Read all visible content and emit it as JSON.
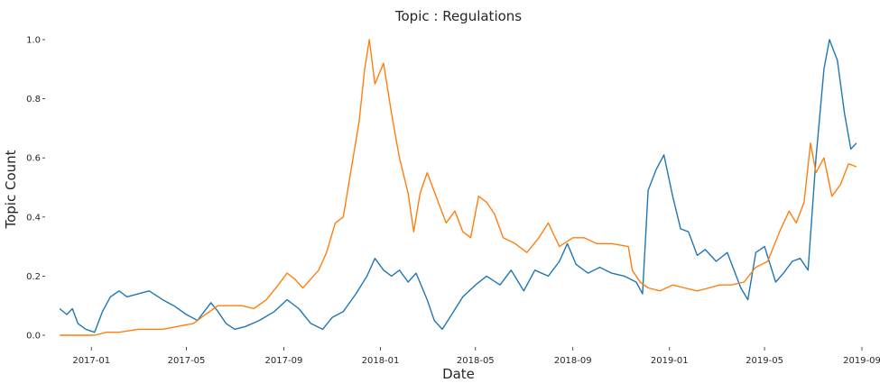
{
  "chart_data": {
    "type": "line",
    "title": "Topic : Regulations",
    "xlabel": "Date",
    "ylabel": "Topic Count",
    "grid": false,
    "xlim": [
      "2016-11-15",
      "2019-09-01"
    ],
    "ylim": [
      0.0,
      1.0
    ],
    "x_ticks": [
      "2017-01",
      "2017-05",
      "2017-09",
      "2018-01",
      "2018-05",
      "2018-09",
      "2019-01",
      "2019-05",
      "2019-09"
    ],
    "y_ticks": [
      "0.0",
      "0.2",
      "0.4",
      "0.6",
      "0.8",
      "1.0"
    ],
    "series": [
      {
        "color": "#1f77b4",
        "points": [
          [
            "2016-11-22",
            0.09
          ],
          [
            "2016-12-01",
            0.07
          ],
          [
            "2016-12-08",
            0.09
          ],
          [
            "2016-12-15",
            0.04
          ],
          [
            "2016-12-25",
            0.02
          ],
          [
            "2017-01-05",
            0.01
          ],
          [
            "2017-01-15",
            0.08
          ],
          [
            "2017-01-25",
            0.13
          ],
          [
            "2017-02-05",
            0.15
          ],
          [
            "2017-02-15",
            0.13
          ],
          [
            "2017-03-01",
            0.14
          ],
          [
            "2017-03-15",
            0.15
          ],
          [
            "2017-04-01",
            0.12
          ],
          [
            "2017-04-15",
            0.1
          ],
          [
            "2017-05-01",
            0.07
          ],
          [
            "2017-05-15",
            0.05
          ],
          [
            "2017-06-01",
            0.11
          ],
          [
            "2017-06-10",
            0.08
          ],
          [
            "2017-06-20",
            0.04
          ],
          [
            "2017-07-01",
            0.02
          ],
          [
            "2017-07-15",
            0.03
          ],
          [
            "2017-08-01",
            0.05
          ],
          [
            "2017-08-20",
            0.08
          ],
          [
            "2017-09-05",
            0.12
          ],
          [
            "2017-09-20",
            0.09
          ],
          [
            "2017-10-05",
            0.04
          ],
          [
            "2017-10-20",
            0.02
          ],
          [
            "2017-11-01",
            0.06
          ],
          [
            "2017-11-15",
            0.08
          ],
          [
            "2017-12-01",
            0.14
          ],
          [
            "2017-12-15",
            0.2
          ],
          [
            "2017-12-25",
            0.26
          ],
          [
            "2018-01-05",
            0.22
          ],
          [
            "2018-01-15",
            0.2
          ],
          [
            "2018-01-25",
            0.22
          ],
          [
            "2018-02-05",
            0.18
          ],
          [
            "2018-02-15",
            0.21
          ],
          [
            "2018-03-01",
            0.12
          ],
          [
            "2018-03-10",
            0.05
          ],
          [
            "2018-03-20",
            0.02
          ],
          [
            "2018-04-01",
            0.07
          ],
          [
            "2018-04-15",
            0.13
          ],
          [
            "2018-05-01",
            0.17
          ],
          [
            "2018-05-15",
            0.2
          ],
          [
            "2018-06-01",
            0.17
          ],
          [
            "2018-06-15",
            0.22
          ],
          [
            "2018-07-01",
            0.15
          ],
          [
            "2018-07-15",
            0.22
          ],
          [
            "2018-08-01",
            0.2
          ],
          [
            "2018-08-15",
            0.25
          ],
          [
            "2018-08-25",
            0.31
          ],
          [
            "2018-09-05",
            0.24
          ],
          [
            "2018-09-20",
            0.21
          ],
          [
            "2018-10-05",
            0.23
          ],
          [
            "2018-10-20",
            0.21
          ],
          [
            "2018-11-05",
            0.2
          ],
          [
            "2018-11-20",
            0.18
          ],
          [
            "2018-11-28",
            0.14
          ],
          [
            "2018-12-05",
            0.49
          ],
          [
            "2018-12-15",
            0.56
          ],
          [
            "2018-12-25",
            0.61
          ],
          [
            "2019-01-05",
            0.47
          ],
          [
            "2019-01-15",
            0.36
          ],
          [
            "2019-01-25",
            0.35
          ],
          [
            "2019-02-05",
            0.27
          ],
          [
            "2019-02-15",
            0.29
          ],
          [
            "2019-03-01",
            0.25
          ],
          [
            "2019-03-15",
            0.28
          ],
          [
            "2019-04-01",
            0.16
          ],
          [
            "2019-04-10",
            0.12
          ],
          [
            "2019-04-20",
            0.28
          ],
          [
            "2019-05-01",
            0.3
          ],
          [
            "2019-05-15",
            0.18
          ],
          [
            "2019-05-25",
            0.21
          ],
          [
            "2019-06-05",
            0.25
          ],
          [
            "2019-06-15",
            0.26
          ],
          [
            "2019-06-25",
            0.22
          ],
          [
            "2019-07-05",
            0.6
          ],
          [
            "2019-07-15",
            0.9
          ],
          [
            "2019-07-22",
            1.0
          ],
          [
            "2019-08-01",
            0.93
          ],
          [
            "2019-08-10",
            0.75
          ],
          [
            "2019-08-18",
            0.63
          ],
          [
            "2019-08-25",
            0.65
          ]
        ]
      },
      {
        "color": "#ff7f0e",
        "points": [
          [
            "2016-11-22",
            0.0
          ],
          [
            "2016-12-15",
            0.0
          ],
          [
            "2017-01-05",
            0.0
          ],
          [
            "2017-01-20",
            0.01
          ],
          [
            "2017-02-05",
            0.01
          ],
          [
            "2017-03-01",
            0.02
          ],
          [
            "2017-04-01",
            0.02
          ],
          [
            "2017-04-20",
            0.03
          ],
          [
            "2017-05-10",
            0.04
          ],
          [
            "2017-05-25",
            0.07
          ],
          [
            "2017-06-10",
            0.1
          ],
          [
            "2017-06-25",
            0.1
          ],
          [
            "2017-07-10",
            0.1
          ],
          [
            "2017-07-25",
            0.09
          ],
          [
            "2017-08-10",
            0.12
          ],
          [
            "2017-08-25",
            0.17
          ],
          [
            "2017-09-05",
            0.21
          ],
          [
            "2017-09-15",
            0.19
          ],
          [
            "2017-09-25",
            0.16
          ],
          [
            "2017-10-05",
            0.19
          ],
          [
            "2017-10-15",
            0.22
          ],
          [
            "2017-10-25",
            0.28
          ],
          [
            "2017-11-05",
            0.38
          ],
          [
            "2017-11-15",
            0.4
          ],
          [
            "2017-11-25",
            0.56
          ],
          [
            "2017-12-05",
            0.72
          ],
          [
            "2017-12-12",
            0.9
          ],
          [
            "2017-12-18",
            1.0
          ],
          [
            "2017-12-25",
            0.85
          ],
          [
            "2018-01-05",
            0.92
          ],
          [
            "2018-01-15",
            0.75
          ],
          [
            "2018-01-25",
            0.6
          ],
          [
            "2018-02-05",
            0.48
          ],
          [
            "2018-02-12",
            0.35
          ],
          [
            "2018-02-20",
            0.48
          ],
          [
            "2018-03-01",
            0.55
          ],
          [
            "2018-03-15",
            0.45
          ],
          [
            "2018-03-25",
            0.38
          ],
          [
            "2018-04-05",
            0.42
          ],
          [
            "2018-04-15",
            0.35
          ],
          [
            "2018-04-25",
            0.33
          ],
          [
            "2018-05-05",
            0.47
          ],
          [
            "2018-05-15",
            0.45
          ],
          [
            "2018-05-25",
            0.41
          ],
          [
            "2018-06-05",
            0.33
          ],
          [
            "2018-06-20",
            0.31
          ],
          [
            "2018-07-05",
            0.28
          ],
          [
            "2018-07-20",
            0.33
          ],
          [
            "2018-08-01",
            0.38
          ],
          [
            "2018-08-15",
            0.3
          ],
          [
            "2018-09-01",
            0.33
          ],
          [
            "2018-09-15",
            0.33
          ],
          [
            "2018-10-01",
            0.31
          ],
          [
            "2018-10-20",
            0.31
          ],
          [
            "2018-11-10",
            0.3
          ],
          [
            "2018-11-15",
            0.22
          ],
          [
            "2018-11-25",
            0.18
          ],
          [
            "2018-12-05",
            0.16
          ],
          [
            "2018-12-20",
            0.15
          ],
          [
            "2019-01-05",
            0.17
          ],
          [
            "2019-01-20",
            0.16
          ],
          [
            "2019-02-05",
            0.15
          ],
          [
            "2019-02-20",
            0.16
          ],
          [
            "2019-03-05",
            0.17
          ],
          [
            "2019-03-20",
            0.17
          ],
          [
            "2019-04-05",
            0.18
          ],
          [
            "2019-04-20",
            0.23
          ],
          [
            "2019-05-05",
            0.25
          ],
          [
            "2019-05-20",
            0.35
          ],
          [
            "2019-06-01",
            0.42
          ],
          [
            "2019-06-10",
            0.38
          ],
          [
            "2019-06-20",
            0.45
          ],
          [
            "2019-06-28",
            0.65
          ],
          [
            "2019-07-05",
            0.55
          ],
          [
            "2019-07-15",
            0.6
          ],
          [
            "2019-07-25",
            0.47
          ],
          [
            "2019-08-05",
            0.51
          ],
          [
            "2019-08-15",
            0.58
          ],
          [
            "2019-08-25",
            0.57
          ]
        ]
      }
    ]
  }
}
